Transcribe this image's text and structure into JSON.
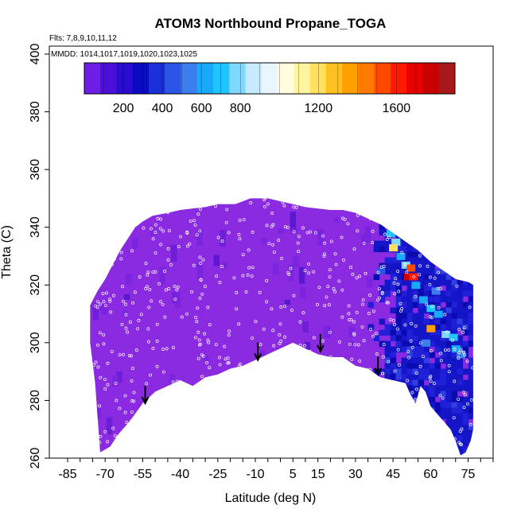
{
  "colors": {
    "background_fill": "#8a2be2",
    "north_fill": "#1a1acc",
    "colorbar": [
      "#6d1ee6",
      "#4a10d8",
      "#2a0bd0",
      "#0a0ac0",
      "#1a2fd8",
      "#2a55e6",
      "#3a7ef0",
      "#1aa8f8",
      "#20c4ff",
      "#7fd8ff",
      "#c8eaff",
      "#eaf6ff",
      "#fffce0",
      "#fff4a0",
      "#ffe060",
      "#ffc020",
      "#ffa000",
      "#ff7a00",
      "#ff4a00",
      "#ff1a00",
      "#e80000",
      "#c80000",
      "#a81818"
    ]
  },
  "chart_data": {
    "type": "heatmap",
    "title": "ATOM3 Northbound Propane_TOGA",
    "annotations": [
      "Flts: 7,8,9,10,11,12",
      "MMDD: 1014,1017,1019,1020,1023,1025"
    ],
    "xlabel": "Latitude (deg N)",
    "ylabel": "Theta (C)",
    "xlim": [
      -85,
      85
    ],
    "ylim": [
      260,
      400
    ],
    "x_ticks": [
      -85,
      -70,
      -55,
      -40,
      -25,
      -10,
      5,
      15,
      30,
      45,
      60,
      75
    ],
    "y_ticks": [
      260,
      280,
      300,
      320,
      340,
      360,
      380,
      400
    ],
    "colorbar": {
      "ticks": [
        200,
        400,
        600,
        800,
        1200,
        1600
      ],
      "range": [
        0,
        1900
      ]
    },
    "envelope_top": [
      [
        -76,
        313
      ],
      [
        -73,
        318
      ],
      [
        -70,
        322
      ],
      [
        -67,
        327
      ],
      [
        -64,
        332
      ],
      [
        -61,
        336
      ],
      [
        -58,
        340
      ],
      [
        -55,
        342
      ],
      [
        -51,
        344
      ],
      [
        -45,
        345
      ],
      [
        -40,
        346
      ],
      [
        -30,
        347
      ],
      [
        -25,
        348
      ],
      [
        -18,
        348
      ],
      [
        -12,
        350
      ],
      [
        -5,
        350
      ],
      [
        0,
        349
      ],
      [
        5,
        348
      ],
      [
        10,
        347
      ],
      [
        20,
        346
      ],
      [
        25,
        346
      ],
      [
        30,
        345
      ],
      [
        35,
        343
      ],
      [
        40,
        341
      ],
      [
        45,
        338
      ],
      [
        50,
        335
      ],
      [
        55,
        332
      ],
      [
        60,
        328
      ],
      [
        65,
        325
      ],
      [
        70,
        322
      ],
      [
        75,
        321
      ],
      [
        77,
        320
      ]
    ],
    "envelope_bottom": [
      [
        -76,
        300
      ],
      [
        -74,
        286
      ],
      [
        -72,
        262
      ],
      [
        -68,
        264
      ],
      [
        -65,
        268
      ],
      [
        -60,
        273
      ],
      [
        -55,
        279
      ],
      [
        -50,
        283
      ],
      [
        -45,
        285
      ],
      [
        -40,
        287
      ],
      [
        -35,
        285
      ],
      [
        -30,
        288
      ],
      [
        -25,
        289
      ],
      [
        -20,
        291
      ],
      [
        -15,
        292
      ],
      [
        -10,
        294
      ],
      [
        -5,
        296
      ],
      [
        0,
        298
      ],
      [
        5,
        300
      ],
      [
        10,
        298
      ],
      [
        15,
        296
      ],
      [
        20,
        295
      ],
      [
        25,
        295
      ],
      [
        30,
        292
      ],
      [
        35,
        291
      ],
      [
        40,
        288
      ],
      [
        45,
        287
      ],
      [
        50,
        286
      ],
      [
        52,
        282
      ],
      [
        54,
        279
      ],
      [
        56,
        285
      ],
      [
        58,
        283
      ],
      [
        60,
        278
      ],
      [
        62,
        276
      ],
      [
        64,
        274
      ],
      [
        66,
        272
      ],
      [
        68,
        270
      ],
      [
        70,
        266
      ],
      [
        72,
        261
      ],
      [
        74,
        262
      ],
      [
        76,
        266
      ],
      [
        77,
        270
      ]
    ],
    "high_cells": [
      {
        "lat": 44,
        "theta": 338,
        "value": 700
      },
      {
        "lat": 46,
        "theta": 335,
        "value": 800
      },
      {
        "lat": 45,
        "theta": 333,
        "value": 1200
      },
      {
        "lat": 48,
        "theta": 330,
        "value": 650
      },
      {
        "lat": 50,
        "theta": 327,
        "value": 750
      },
      {
        "lat": 52,
        "theta": 326,
        "value": 1500
      },
      {
        "lat": 51,
        "theta": 323,
        "value": 1800
      },
      {
        "lat": 53,
        "theta": 323,
        "value": 1600
      },
      {
        "lat": 54,
        "theta": 320,
        "value": 600
      },
      {
        "lat": 57,
        "theta": 315,
        "value": 650
      },
      {
        "lat": 60,
        "theta": 312,
        "value": 700
      },
      {
        "lat": 63,
        "theta": 310,
        "value": 600
      },
      {
        "lat": 60,
        "theta": 305,
        "value": 1400
      },
      {
        "lat": 66,
        "theta": 303,
        "value": 750
      },
      {
        "lat": 69,
        "theta": 302,
        "value": 700
      },
      {
        "lat": 70,
        "theta": 298,
        "value": 650
      },
      {
        "lat": 72,
        "theta": 296,
        "value": 550
      },
      {
        "lat": 58,
        "theta": 300,
        "value": 500
      },
      {
        "lat": 40,
        "theta": 325,
        "value": 450
      },
      {
        "lat": 62,
        "theta": 318,
        "value": 550
      }
    ],
    "tropopause_arrows": [
      {
        "lat": -54,
        "theta": 279
      },
      {
        "lat": -9,
        "theta": 294
      },
      {
        "lat": 16,
        "theta": 297
      },
      {
        "lat": 39,
        "theta": 289
      }
    ]
  }
}
